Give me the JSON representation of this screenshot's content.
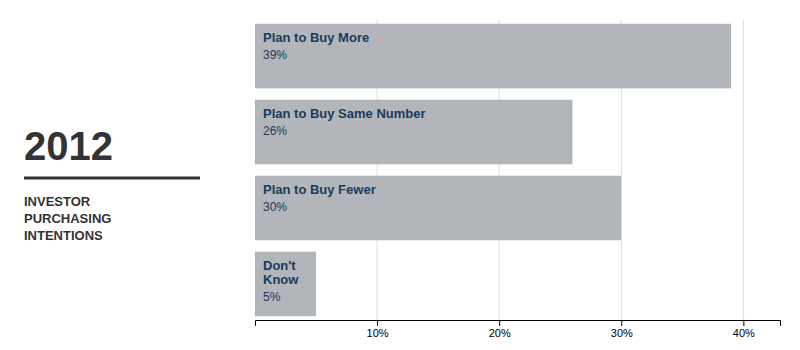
{
  "chart_data": {
    "type": "bar",
    "orientation": "horizontal",
    "title": "2012",
    "subtitle": "INVESTOR\nPURCHASING\nINTENTIONS",
    "categories": [
      "Plan to Buy More",
      "Plan to Buy Same Number",
      "Plan to Buy Fewer",
      "Don't\nKnow"
    ],
    "values": [
      39,
      26,
      30,
      5
    ],
    "value_labels": [
      "39%",
      "26%",
      "30%",
      "5%"
    ],
    "data_labels": true,
    "color": "#b2b6ba",
    "xlim": [
      0,
      43
    ],
    "xticks": [
      {
        "value": 10,
        "label": "10%"
      },
      {
        "value": 20,
        "label": "20%"
      },
      {
        "value": 30,
        "label": "30%"
      },
      {
        "value": 40,
        "label": "40%"
      }
    ],
    "grid": true
  }
}
